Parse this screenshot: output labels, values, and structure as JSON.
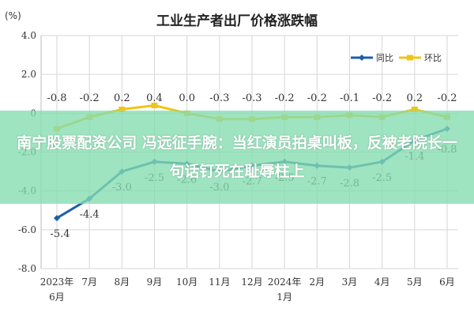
{
  "chart_data": {
    "type": "line",
    "title": "工业生产者出厂价格涨跌幅",
    "unit_label": "(%)",
    "categories": [
      "2023年6月",
      "7月",
      "8月",
      "9月",
      "10月",
      "11月",
      "12月",
      "2024年1月",
      "2月",
      "3月",
      "4月",
      "5月",
      "6月"
    ],
    "category_lines": [
      [
        "2023年",
        "6月"
      ],
      [
        "7月"
      ],
      [
        "8月"
      ],
      [
        "9月"
      ],
      [
        "10月"
      ],
      [
        "11月"
      ],
      [
        "12月"
      ],
      [
        "2024年",
        "1月"
      ],
      [
        "2月"
      ],
      [
        "3月"
      ],
      [
        "4月"
      ],
      [
        "5月"
      ],
      [
        "6月"
      ]
    ],
    "series": [
      {
        "name": "同比",
        "color": "#1f5fa8",
        "values": [
          -5.4,
          -4.4,
          -3.0,
          -2.5,
          -2.6,
          -3.0,
          -2.7,
          -2.5,
          -2.7,
          -2.8,
          -2.5,
          -1.4,
          -0.8
        ]
      },
      {
        "name": "环比",
        "color": "#f0c419",
        "values": [
          -0.8,
          -0.2,
          0.2,
          0.4,
          0.0,
          -0.3,
          -0.3,
          -0.2,
          -0.2,
          -0.1,
          -0.2,
          0.2,
          -0.2
        ]
      }
    ],
    "yoy_labels": [
      "-5.4",
      "-4.4",
      "-3.0",
      "-2.5",
      "-2.6",
      "-3.0",
      "-2.7",
      "-2.5",
      "-2.7",
      "-2.8",
      "-2.5",
      "-1.4",
      "-0.8"
    ],
    "mom_labels": [
      "-0.8",
      "-0.2",
      "0.2",
      "0.4",
      "0.0",
      "-0.3",
      "-0.3",
      "-0.2",
      "-0.2",
      "-0.1",
      "-0.2",
      "0.2",
      "-0.2"
    ],
    "ylim": [
      -8.0,
      4.0
    ],
    "yticks": [
      "4.0",
      "2.0",
      "0",
      "-2.0",
      "-4.0",
      "-6.0",
      "-8.0"
    ],
    "grid": true,
    "legend_position": "top-right"
  },
  "overlay": {
    "text": "南宁股票配资公司 冯远征手腕：当红演员拍桌叫板，反被老院长一句话钉死在耻辱柱上",
    "color": "#84dcb0"
  }
}
